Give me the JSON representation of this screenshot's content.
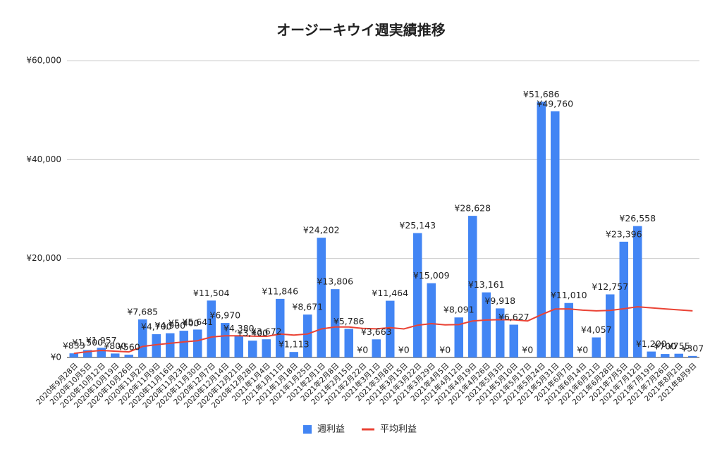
{
  "chart_data": {
    "type": "bar",
    "title": "オージーキウイ週実績推移",
    "categories": [
      "2020年9月28日",
      "2020年10月5日",
      "2020年10月12日",
      "2020年10月19日",
      "2020年10月26日",
      "2020年11月2日",
      "2020年11月9日",
      "2020年11月16日",
      "2020年11月23日",
      "2020年11月30日",
      "2020年12月7日",
      "2020年12月14日",
      "2020年12月21日",
      "2020年12月28日",
      "2021年1月4日",
      "2021年1月11日",
      "2021年1月18日",
      "2021年1月25日",
      "2021年2月1日",
      "2021年2月8日",
      "2021年2月15日",
      "2021年2月22日",
      "2021年3月1日",
      "2021年3月8日",
      "2021年3月15日",
      "2021年3月22日",
      "2021年3月29日",
      "2021年4月5日",
      "2021年4月12日",
      "2021年4月19日",
      "2021年4月26日",
      "2021年5月3日",
      "2021年5月10日",
      "2021年5月17日",
      "2021年5月24日",
      "2021年5月31日",
      "2021年6月7日",
      "2021年6月14日",
      "2021年6月21日",
      "2021年6月28日",
      "2021年7月5日",
      "2021年7月12日",
      "2021年7月19日",
      "2021年7月26日",
      "2021年8月2日",
      "2021年8月9日"
    ],
    "series": [
      {
        "name": "週利益",
        "type": "bar",
        "color": "#4285f4",
        "values": [
          833,
          1500,
          1957,
          800,
          560,
          7685,
          4700,
          4900,
          5400,
          5641,
          11504,
          6970,
          4380,
          3400,
          3672,
          11846,
          1113,
          8671,
          24202,
          13806,
          5786,
          0,
          3663,
          11464,
          0,
          25143,
          15009,
          0,
          8091,
          28628,
          13161,
          9918,
          6627,
          0,
          51686,
          49760,
          11010,
          0,
          4057,
          12757,
          23396,
          26558,
          1200,
          700,
          755,
          307
        ],
        "value_labels": [
          "¥833",
          "¥1,500",
          "¥1,957",
          "¥800",
          "¥560",
          "¥7,685",
          "¥4,700",
          "¥4,900",
          "¥5,400",
          "¥5,641",
          "¥11,504",
          "¥6,970",
          "¥4,380",
          "¥3,400",
          "¥3,672",
          "¥11,846",
          "¥1,113",
          "¥8,671",
          "¥24,202",
          "¥13,806",
          "¥5,786",
          "¥0",
          "¥3,663",
          "¥11,464",
          "¥0",
          "¥25,143",
          "¥15,009",
          "¥0",
          "¥8,091",
          "¥28,628",
          "¥13,161",
          "¥9,918",
          "¥6,627",
          "¥0",
          "¥51,686",
          "¥49,760",
          "¥11,010",
          "¥0",
          "¥4,057",
          "¥12,757",
          "¥23,396",
          "¥26,558",
          "¥1,200",
          "¥700",
          "¥755",
          "¥307"
        ]
      },
      {
        "name": "平均利益",
        "type": "line",
        "color": "#ea4335",
        "values": [
          833,
          1167,
          1430,
          1273,
          1130,
          2223,
          2576,
          2867,
          3148,
          3398,
          4135,
          4371,
          4372,
          4302,
          4260,
          4734,
          4521,
          4752,
          5775,
          6177,
          6158,
          5878,
          5782,
          6019,
          5778,
          6523,
          6837,
          6593,
          6645,
          7377,
          7564,
          7638,
          7607,
          7383,
          8649,
          9791,
          9824,
          9565,
          9424,
          9508,
          9846,
          10244,
          10034,
          9822,
          9620,
          9418
        ]
      }
    ],
    "ylim": [
      0,
      60000
    ],
    "yticks": [
      {
        "value": 0,
        "label": "¥0"
      },
      {
        "value": 20000,
        "label": "¥20,000"
      },
      {
        "value": 40000,
        "label": "¥40,000"
      },
      {
        "value": 60000,
        "label": "¥60,000"
      }
    ],
    "grid": true
  }
}
